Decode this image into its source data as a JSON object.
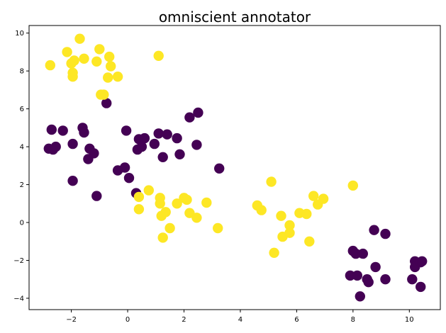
{
  "chart_data": {
    "type": "scatter",
    "title": "omniscient annotator",
    "xlabel": "",
    "ylabel": "",
    "xlim": [
      -3.5,
      11.1
    ],
    "ylim": [
      -4.6,
      10.4
    ],
    "xticks": [
      -2,
      0,
      2,
      4,
      6,
      8,
      10
    ],
    "yticks": [
      -4,
      -2,
      0,
      2,
      4,
      6,
      8,
      10
    ],
    "grid": false,
    "legend": "none",
    "colors": {
      "class_0": "#440154",
      "class_1": "#fde725"
    },
    "series": [
      {
        "class": 0,
        "color": "#440154",
        "points": [
          [
            -2.7,
            4.9
          ],
          [
            -2.3,
            4.85
          ],
          [
            -2.8,
            3.9
          ],
          [
            -2.65,
            3.85
          ],
          [
            -2.55,
            4.0
          ],
          [
            -1.95,
            4.15
          ],
          [
            -1.6,
            5.0
          ],
          [
            -1.55,
            4.75
          ],
          [
            -1.35,
            3.9
          ],
          [
            -1.4,
            3.35
          ],
          [
            -1.2,
            3.65
          ],
          [
            -1.95,
            2.2
          ],
          [
            -1.1,
            1.4
          ],
          [
            -0.75,
            6.3
          ],
          [
            -0.35,
            2.75
          ],
          [
            -0.1,
            2.9
          ],
          [
            -0.05,
            4.85
          ],
          [
            0.05,
            2.35
          ],
          [
            0.35,
            3.85
          ],
          [
            0.4,
            4.4
          ],
          [
            0.5,
            4.0
          ],
          [
            0.6,
            4.45
          ],
          [
            0.3,
            1.55
          ],
          [
            0.95,
            4.15
          ],
          [
            1.1,
            4.7
          ],
          [
            1.4,
            4.65
          ],
          [
            1.25,
            3.45
          ],
          [
            1.75,
            4.45
          ],
          [
            1.85,
            3.6
          ],
          [
            2.2,
            5.55
          ],
          [
            2.5,
            5.8
          ],
          [
            2.45,
            4.1
          ],
          [
            3.25,
            2.85
          ],
          [
            8.0,
            -1.5
          ],
          [
            8.1,
            -1.65
          ],
          [
            8.35,
            -1.65
          ],
          [
            7.9,
            -2.8
          ],
          [
            8.15,
            -2.8
          ],
          [
            8.25,
            -3.9
          ],
          [
            8.5,
            -3.0
          ],
          [
            8.55,
            -3.15
          ],
          [
            8.75,
            -0.4
          ],
          [
            8.8,
            -2.35
          ],
          [
            9.15,
            -3.0
          ],
          [
            9.15,
            -0.6
          ],
          [
            10.1,
            -3.0
          ],
          [
            10.2,
            -2.05
          ],
          [
            10.2,
            -2.35
          ],
          [
            10.4,
            -2.1
          ],
          [
            10.45,
            -2.05
          ],
          [
            10.4,
            -3.4
          ]
        ]
      },
      {
        "class": 1,
        "color": "#fde725",
        "points": [
          [
            -2.75,
            8.3
          ],
          [
            -2.15,
            9.0
          ],
          [
            -2.0,
            8.4
          ],
          [
            -1.9,
            8.55
          ],
          [
            -1.95,
            7.9
          ],
          [
            -1.95,
            7.7
          ],
          [
            -1.7,
            9.7
          ],
          [
            -1.55,
            8.65
          ],
          [
            -1.1,
            8.5
          ],
          [
            -1.0,
            9.15
          ],
          [
            -0.95,
            6.75
          ],
          [
            -0.85,
            6.75
          ],
          [
            -0.65,
            8.75
          ],
          [
            -0.6,
            8.25
          ],
          [
            -0.7,
            7.65
          ],
          [
            -0.35,
            7.7
          ],
          [
            1.1,
            8.8
          ],
          [
            0.75,
            1.7
          ],
          [
            0.4,
            1.35
          ],
          [
            0.4,
            0.7
          ],
          [
            1.15,
            1.3
          ],
          [
            1.15,
            1.0
          ],
          [
            1.2,
            0.35
          ],
          [
            1.35,
            0.55
          ],
          [
            1.5,
            -0.3
          ],
          [
            1.75,
            1.0
          ],
          [
            2.0,
            1.3
          ],
          [
            2.1,
            1.2
          ],
          [
            2.2,
            0.5
          ],
          [
            2.45,
            0.25
          ],
          [
            1.25,
            -0.8
          ],
          [
            2.8,
            1.05
          ],
          [
            3.2,
            -0.3
          ],
          [
            4.6,
            0.9
          ],
          [
            4.75,
            0.65
          ],
          [
            5.1,
            2.15
          ],
          [
            5.2,
            -1.6
          ],
          [
            5.45,
            0.35
          ],
          [
            5.5,
            -0.75
          ],
          [
            5.75,
            -0.15
          ],
          [
            5.75,
            -0.55
          ],
          [
            6.1,
            0.5
          ],
          [
            6.35,
            0.45
          ],
          [
            6.45,
            -1.0
          ],
          [
            6.6,
            1.4
          ],
          [
            6.75,
            0.95
          ],
          [
            6.95,
            1.25
          ],
          [
            8.0,
            1.95
          ]
        ]
      }
    ]
  }
}
